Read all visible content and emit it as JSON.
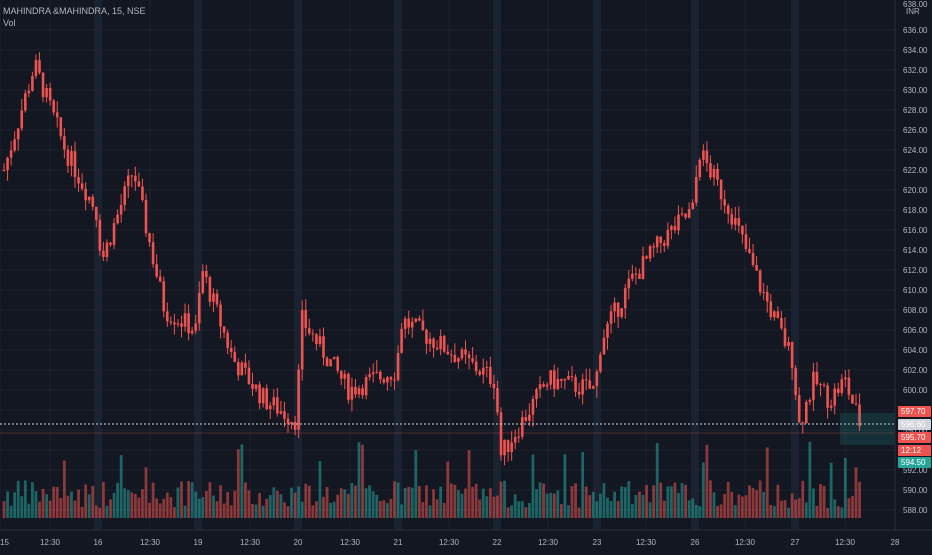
{
  "header": {
    "symbol": "MAHINDRA &MAHINDRA, 15, NSE",
    "volume_label": "Vol"
  },
  "chart_data": {
    "type": "candlestick",
    "currency": "INR",
    "ylim": [
      586,
      639
    ],
    "y_ticks": [
      588.0,
      590.0,
      592.0,
      594.0,
      596.0,
      598.0,
      600.0,
      602.0,
      604.0,
      606.0,
      608.0,
      610.0,
      612.0,
      614.0,
      616.0,
      618.0,
      620.0,
      622.0,
      624.0,
      626.0,
      628.0,
      630.0,
      632.0,
      634.0,
      636.0
    ],
    "y_top_label": "638.00",
    "x_labels": [
      "15",
      "12:30",
      "16",
      "12:30",
      "19",
      "12:30",
      "20",
      "12:30",
      "21",
      "12:30",
      "22",
      "12:30",
      "23",
      "12:30",
      "26",
      "12:30",
      "27",
      "12:30",
      "28"
    ],
    "key_points": [
      {
        "day": "15",
        "price": 622
      },
      {
        "day": "15",
        "price": 632.5
      },
      {
        "day": "15",
        "price": 624
      },
      {
        "day": "15",
        "price": 618
      },
      {
        "day": "16",
        "price": 613
      },
      {
        "day": "16",
        "price": 622
      },
      {
        "day": "16",
        "price": 608
      },
      {
        "day": "16",
        "price": 606
      },
      {
        "day": "19",
        "price": 612
      },
      {
        "day": "19",
        "price": 603
      },
      {
        "day": "19",
        "price": 599
      },
      {
        "day": "19",
        "price": 597
      },
      {
        "day": "20",
        "price": 607
      },
      {
        "day": "20",
        "price": 600
      },
      {
        "day": "20",
        "price": 602
      },
      {
        "day": "21",
        "price": 607
      },
      {
        "day": "21",
        "price": 604
      },
      {
        "day": "21",
        "price": 601
      },
      {
        "day": "22",
        "price": 593.5
      },
      {
        "day": "22",
        "price": 601
      },
      {
        "day": "22",
        "price": 600
      },
      {
        "day": "23",
        "price": 605
      },
      {
        "day": "23",
        "price": 611
      },
      {
        "day": "23",
        "price": 615
      },
      {
        "day": "23",
        "price": 618
      },
      {
        "day": "26",
        "price": 624
      },
      {
        "day": "26",
        "price": 618
      },
      {
        "day": "26",
        "price": 610
      },
      {
        "day": "26",
        "price": 603
      },
      {
        "day": "27",
        "price": 596.5
      },
      {
        "day": "27",
        "price": 601
      },
      {
        "day": "27",
        "price": 599
      },
      {
        "day": "27",
        "price": 601
      },
      {
        "day": "27",
        "price": 596.6
      }
    ],
    "price_tags": [
      {
        "value": "597.70",
        "color": "#ef5350"
      },
      {
        "value": "596.60",
        "color": "#d1d4dc"
      },
      {
        "value": "595.70",
        "color": "#ef5350"
      },
      {
        "value": "12:12",
        "color": "#ef5350"
      },
      {
        "value": "594.50",
        "color": "#26a69a"
      }
    ],
    "last_price": 596.6,
    "colors": {
      "background": "#131722",
      "up": "#26a69a",
      "down": "#ef5350",
      "grid": "#1e222d",
      "session_band": "#1b2333"
    }
  }
}
